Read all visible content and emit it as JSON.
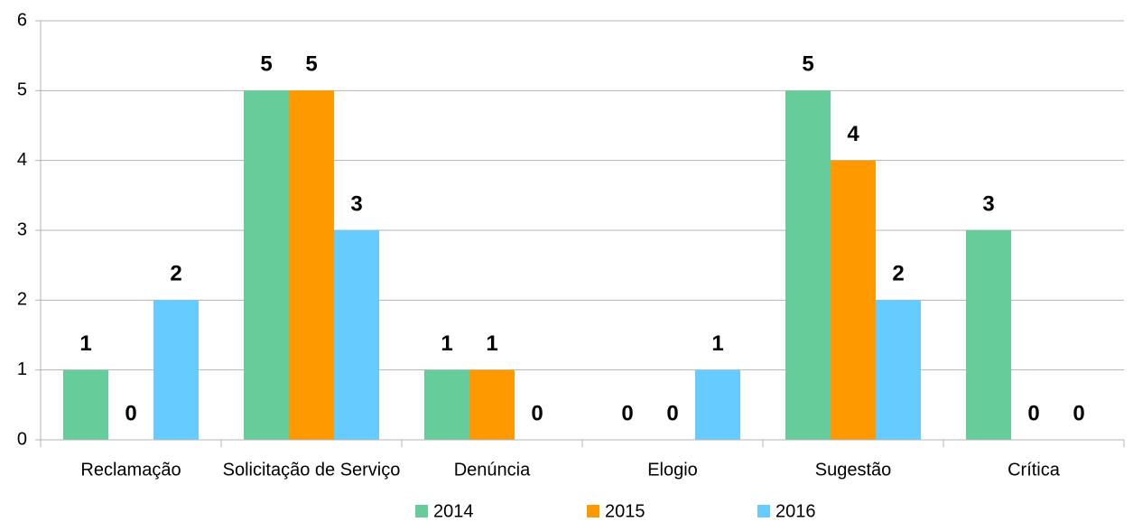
{
  "chart_data": {
    "type": "bar",
    "categories": [
      "Reclamação",
      "Solicitação de Serviço",
      "Denúncia",
      "Elogio",
      "Sugestão",
      "Crítica"
    ],
    "series": [
      {
        "name": "2014",
        "color": "#66cc99",
        "values": [
          1,
          5,
          1,
          0,
          5,
          3
        ]
      },
      {
        "name": "2015",
        "color": "#ff9900",
        "values": [
          0,
          5,
          1,
          0,
          4,
          0
        ]
      },
      {
        "name": "2016",
        "color": "#66ccff",
        "values": [
          2,
          3,
          0,
          1,
          2,
          0
        ]
      }
    ],
    "ylim": [
      0,
      6
    ],
    "yticks": [
      0,
      1,
      2,
      3,
      4,
      5,
      6
    ],
    "grid": true,
    "legend": "bottom"
  }
}
